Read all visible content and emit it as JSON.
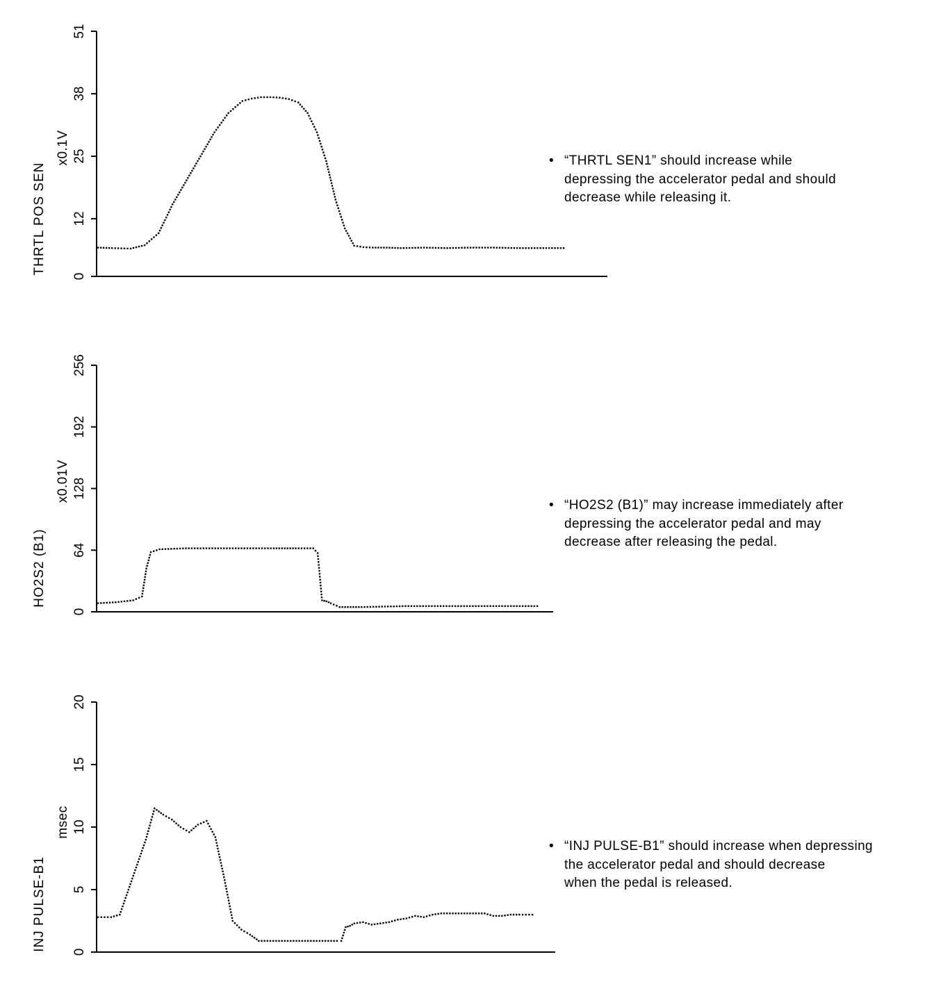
{
  "colors": {
    "ink": "#000000",
    "background": "#ffffff"
  },
  "chart_data": [
    {
      "type": "scatter",
      "title": "",
      "ylabel": "THRTL POS SEN",
      "unit": "x0.1V",
      "xlabel": "",
      "ylim": [
        0,
        51
      ],
      "yticks": [
        "0",
        "12",
        "25",
        "38",
        "51"
      ],
      "note": {
        "bullet": "•",
        "lines": [
          "“THRTL SEN1” should increase while",
          "depressing the accelerator pedal and should",
          "decrease while releasing it."
        ]
      },
      "series": [
        {
          "name": "THRTL SEN1",
          "x": [
            0,
            3,
            7,
            10,
            13,
            16,
            19,
            22,
            25,
            28,
            31,
            33,
            35,
            37,
            39,
            41,
            43,
            45,
            47,
            49,
            51,
            53,
            55,
            57,
            59,
            62,
            65,
            70,
            75,
            80,
            85,
            90,
            100
          ],
          "y": [
            6,
            5.9,
            5.8,
            6.5,
            9,
            15,
            20,
            25,
            30,
            34,
            36.5,
            37,
            37.3,
            37.3,
            37.2,
            36.9,
            36.2,
            34,
            30,
            24,
            16,
            10,
            6.4,
            6.1,
            6,
            6,
            5.9,
            6,
            5.9,
            6,
            6,
            5.9,
            5.9
          ],
          "x_start": 0,
          "x_end": 100
        }
      ]
    },
    {
      "type": "scatter",
      "title": "",
      "ylabel": "HO2S2 (B1)",
      "unit": "x0.01V",
      "xlabel": "",
      "ylim": [
        0,
        256
      ],
      "yticks": [
        "0",
        "64",
        "128",
        "192",
        "256"
      ],
      "note": {
        "bullet": "•",
        "lines": [
          "“HO2S2 (B1)” may increase immediately after",
          "depressing the accelerator pedal and may",
          "decrease after releasing the pedal."
        ]
      },
      "series": [
        {
          "name": "HO2S2 (B1)",
          "x": [
            0,
            4,
            8,
            10,
            11,
            12,
            14,
            20,
            30,
            40,
            45,
            49,
            50,
            51,
            52,
            53,
            55,
            60,
            70,
            80,
            90,
            100
          ],
          "y": [
            9,
            10,
            12,
            16,
            45,
            62,
            65,
            66,
            66,
            66,
            66,
            66,
            61,
            12,
            11,
            9,
            5,
            5,
            6,
            6,
            6,
            6
          ],
          "x_start": 0,
          "x_end": 100
        }
      ]
    },
    {
      "type": "scatter",
      "title": "",
      "ylabel": "INJ PULSE-B1",
      "unit": "msec",
      "xlabel": "",
      "ylim": [
        0,
        20
      ],
      "yticks": [
        "0",
        "5",
        "10",
        "15",
        "20"
      ],
      "note": {
        "bullet": "•",
        "lines": [
          "“INJ PULSE-B1” should increase when depressing",
          "the accelerator pedal and should decrease",
          "when the pedal is released."
        ]
      },
      "series": [
        {
          "name": "INJ PULSE-B1",
          "x": [
            0,
            3,
            5,
            7,
            9,
            11,
            13,
            15,
            17,
            19,
            21,
            23,
            25,
            27,
            29,
            31,
            33,
            35,
            37,
            39,
            41,
            43,
            45,
            47,
            49,
            51,
            53,
            55,
            56,
            57,
            58,
            59,
            61,
            63,
            65,
            67,
            69,
            71,
            73,
            75,
            77,
            79,
            81,
            83,
            85,
            87,
            89,
            91,
            93,
            95,
            97,
            100
          ],
          "y": [
            2.8,
            2.8,
            3,
            5,
            7,
            9,
            11.5,
            11,
            10.6,
            10,
            9.6,
            10.2,
            10.5,
            9.2,
            6,
            2.5,
            1.8,
            1.4,
            0.9,
            0.9,
            0.9,
            0.9,
            0.9,
            0.9,
            0.9,
            0.9,
            0.9,
            0.9,
            0.9,
            2,
            2.1,
            2.3,
            2.4,
            2.2,
            2.3,
            2.4,
            2.6,
            2.7,
            2.9,
            2.8,
            3,
            3.1,
            3.1,
            3.1,
            3.1,
            3.1,
            3.1,
            2.9,
            2.9,
            3,
            3,
            3
          ]
        }
      ]
    }
  ]
}
